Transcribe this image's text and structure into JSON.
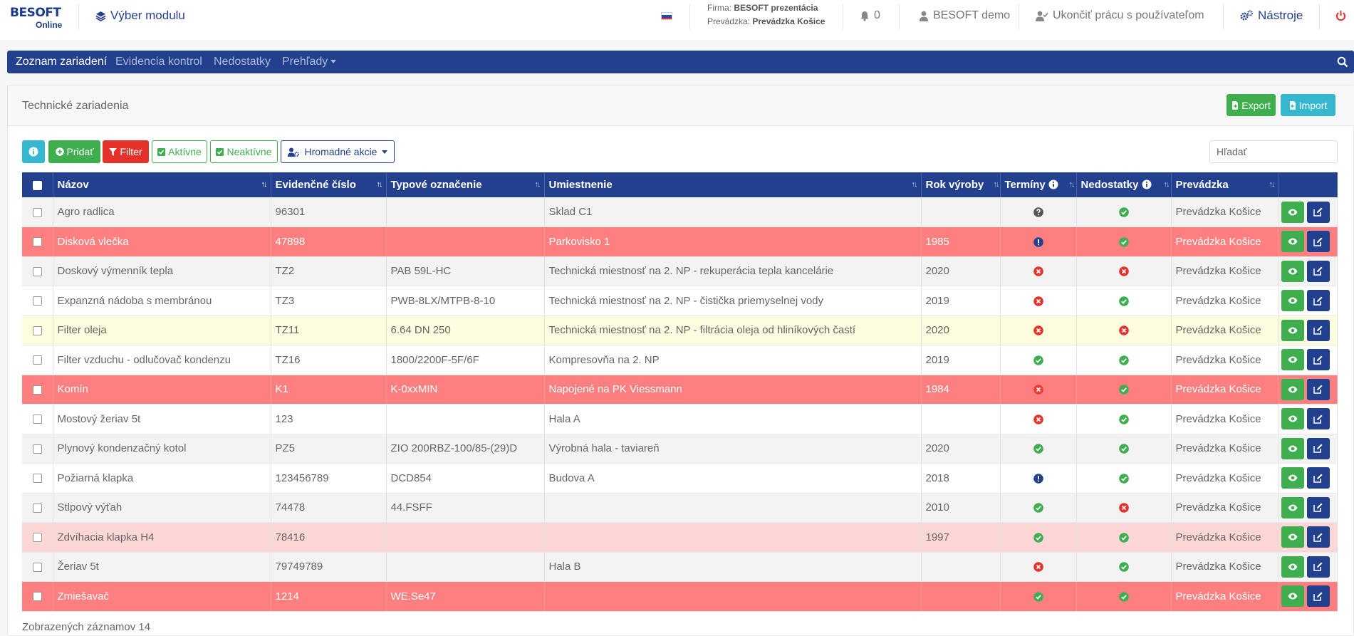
{
  "header": {
    "logo": {
      "brand": "BESOFT",
      "sub": "Online"
    },
    "module_selector": "Výber modulu",
    "firma_label": "Firma:",
    "firma_value": "BESOFT prezentácia",
    "prevadzka_label": "Prevádzka:",
    "prevadzka_value": "Prevádzka Košice",
    "notifications_count": "0",
    "user": "BESOFT demo",
    "end_work": "Ukončiť prácu s používateľom",
    "tools": "Nástroje"
  },
  "navbar": {
    "items": [
      "Zoznam zariadení",
      "Evidencia kontrol",
      "Nedostatky",
      "Prehľady"
    ]
  },
  "panel": {
    "title": "Technické zariadenia",
    "export_label": "Export",
    "import_label": "Import"
  },
  "toolbar": {
    "add_label": "Pridať",
    "filter_label": "Filter",
    "active_label": "Aktívne",
    "inactive_label": "Neaktívne",
    "bulk_label": "Hromadné akcie",
    "search_placeholder": "Hľadať"
  },
  "table": {
    "columns": [
      "Názov",
      "Evidenčné číslo",
      "Typové označenie",
      "Umiestnenie",
      "Rok výroby",
      "Termíny",
      "Nedostatky",
      "Prevádzka"
    ],
    "rows": [
      {
        "style": "odd",
        "name": "Agro radlica",
        "ev": "96301",
        "typ": "",
        "umiestnenie": "Sklad C1",
        "rok": "",
        "terminy": "question",
        "nedostatky": "ok",
        "prevadzka": "Prevádzka Košice"
      },
      {
        "style": "red",
        "name": "Disková vlečka",
        "ev": "47898",
        "typ": "",
        "umiestnenie": "Parkovisko 1",
        "rok": "1985",
        "terminy": "warning",
        "nedostatky": "ok",
        "prevadzka": "Prevádzka Košice"
      },
      {
        "style": "odd",
        "name": "Doskový výmenník tepla",
        "ev": "TZ2",
        "typ": "PAB 59L-HC",
        "umiestnenie": "Technická miestnosť na 2. NP - rekuperácia tepla kancelárie",
        "rok": "2020",
        "terminy": "error",
        "nedostatky": "error",
        "prevadzka": "Prevádzka Košice"
      },
      {
        "style": "even",
        "name": "Expanzná nádoba s membránou",
        "ev": "TZ3",
        "typ": "PWB-8LX/MTPB-8-10",
        "umiestnenie": "Technická miestnosť na 2. NP - čistička priemyselnej vody",
        "rok": "2019",
        "terminy": "error",
        "nedostatky": "ok",
        "prevadzka": "Prevádzka Košice"
      },
      {
        "style": "yellow",
        "name": "Filter oleja",
        "ev": "TZ11",
        "typ": "6.64 DN 250",
        "umiestnenie": "Technická miestnosť na 2. NP - filtrácia oleja od hliníkových častí",
        "rok": "2020",
        "terminy": "error",
        "nedostatky": "error",
        "prevadzka": "Prevádzka Košice"
      },
      {
        "style": "even",
        "name": "Filter vzduchu - odlučovač kondenzu",
        "ev": "TZ16",
        "typ": "1800/2200F-5F/6F",
        "umiestnenie": "Kompresovňa na 2. NP",
        "rok": "2019",
        "terminy": "ok",
        "nedostatky": "ok",
        "prevadzka": "Prevádzka Košice"
      },
      {
        "style": "red",
        "name": "Komín",
        "ev": "K1",
        "typ": "K-0xxMIN",
        "umiestnenie": "Napojené na PK Viessmann",
        "rok": "1984",
        "terminy": "error",
        "nedostatky": "ok",
        "prevadzka": "Prevádzka Košice"
      },
      {
        "style": "even",
        "name": "Mostový žeriav 5t",
        "ev": "123",
        "typ": "",
        "umiestnenie": "Hala A",
        "rok": "",
        "terminy": "error",
        "nedostatky": "ok",
        "prevadzka": "Prevádzka Košice"
      },
      {
        "style": "odd",
        "name": "Plynový kondenzačný kotol",
        "ev": "PZ5",
        "typ": "ZIO 200RBZ-100/85-(29)D",
        "umiestnenie": "Výrobná hala - taviareň",
        "rok": "2020",
        "terminy": "ok",
        "nedostatky": "ok",
        "prevadzka": "Prevádzka Košice"
      },
      {
        "style": "even",
        "name": "Požiarná klapka",
        "ev": "123456789",
        "typ": "DCD854",
        "umiestnenie": "Budova A",
        "rok": "2018",
        "terminy": "warning",
        "nedostatky": "ok",
        "prevadzka": "Prevádzka Košice"
      },
      {
        "style": "odd",
        "name": "Stlpový výťah",
        "ev": "74478",
        "typ": "44.FSFF",
        "umiestnenie": "",
        "rok": "2010",
        "terminy": "ok",
        "nedostatky": "error",
        "prevadzka": "Prevádzka Košice"
      },
      {
        "style": "pink",
        "name": "Zdvíhacia klapka H4",
        "ev": "78416",
        "typ": "",
        "umiestnenie": "",
        "rok": "1997",
        "terminy": "ok",
        "nedostatky": "ok",
        "prevadzka": "Prevádzka Košice"
      },
      {
        "style": "odd",
        "name": "Žeriav 5t",
        "ev": "79749789",
        "typ": "",
        "umiestnenie": "Hala B",
        "rok": "",
        "terminy": "error",
        "nedostatky": "ok",
        "prevadzka": "Prevádzka Košice"
      },
      {
        "style": "red",
        "name": "Zmiešavač",
        "ev": "1214",
        "typ": "WE.Se47",
        "umiestnenie": "",
        "rok": "",
        "terminy": "ok",
        "nedostatky": "ok",
        "prevadzka": "Prevádzka Košice"
      }
    ]
  },
  "footer": {
    "count_text": "Zobrazených záznamov 14"
  },
  "colors": {
    "primary": "#23408e",
    "success": "#3eae4f",
    "danger": "#e3332a",
    "info": "#34b7cf",
    "row_red": "#fd7f7f",
    "row_yellow": "#fdfddf",
    "row_pink": "#fdd6d6"
  }
}
